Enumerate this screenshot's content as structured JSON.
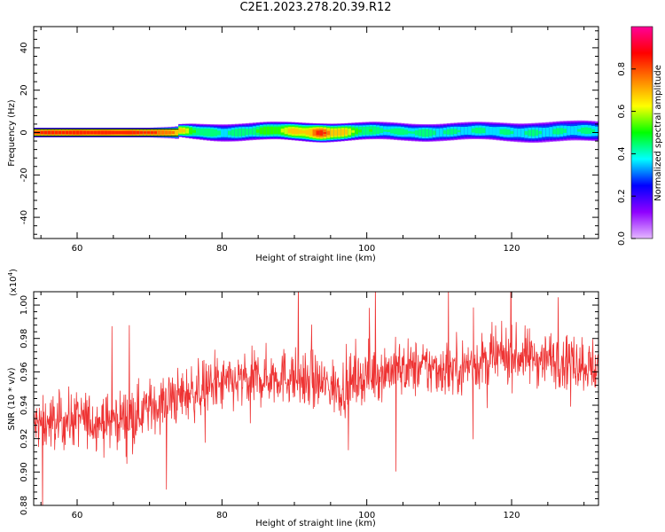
{
  "title": "C2E1.2023.278.20.39.R12",
  "chart_data": [
    {
      "type": "heatmap",
      "xlabel": "Height of straight line (km)",
      "ylabel": "Frequency (Hz)",
      "xlim": [
        54,
        132
      ],
      "ylim": [
        -50,
        50
      ],
      "xticks": [
        60,
        80,
        100,
        120
      ],
      "yticks": [
        -40,
        -20,
        0,
        20,
        40
      ],
      "colorbar": {
        "label": "Normalized spectral amplitude",
        "range": [
          0,
          1
        ],
        "ticks": [
          0.0,
          0.2,
          0.4,
          0.6,
          0.8
        ],
        "colormap": [
          "#e4b8ff",
          "#8f00ff",
          "#0000ff",
          "#00ffff",
          "#00ff00",
          "#ffff00",
          "#ff8000",
          "#ff0000",
          "#ff0099"
        ]
      },
      "band_profile": {
        "height_km": [
          54,
          60,
          66,
          70,
          73,
          76,
          80,
          84,
          88,
          92,
          94,
          97,
          100,
          104,
          108,
          112,
          116,
          120,
          124,
          128,
          132
        ],
        "peak_amplitude": [
          0.85,
          0.88,
          0.87,
          0.85,
          0.8,
          0.55,
          0.45,
          0.5,
          0.62,
          0.75,
          0.85,
          0.68,
          0.5,
          0.45,
          0.48,
          0.44,
          0.45,
          0.44,
          0.45,
          0.44,
          0.45
        ],
        "half_width_hz": [
          1.5,
          1.5,
          1.5,
          1.5,
          1.8,
          2.6,
          3.0,
          3.0,
          3.0,
          3.2,
          3.2,
          3.0,
          3.0,
          3.0,
          3.0,
          3.0,
          3.0,
          3.2,
          3.5,
          3.5,
          3.5
        ]
      }
    },
    {
      "type": "line",
      "xlabel": "Height of straight line (km)",
      "ylabel": "SNR (10 * v/v)",
      "y_multiplier": "(x10",
      "y_multiplier_exp": "4",
      "y_multiplier_close": ")",
      "xlim": [
        54,
        132
      ],
      "ylim": [
        0.88,
        1.008
      ],
      "xticks": [
        60,
        80,
        100,
        120
      ],
      "yticks": [
        0.88,
        0.9,
        0.92,
        0.94,
        0.96,
        0.98,
        1.0
      ],
      "series": [
        {
          "color": "#ee3333",
          "trend_x": [
            54,
            60,
            64,
            68,
            72,
            76,
            80,
            84,
            88,
            92,
            96,
            100,
            104,
            108,
            112,
            116,
            120,
            124,
            128,
            132
          ],
          "trend_y": [
            0.928,
            0.932,
            0.93,
            0.935,
            0.942,
            0.948,
            0.952,
            0.955,
            0.958,
            0.955,
            0.95,
            0.958,
            0.962,
            0.962,
            0.962,
            0.966,
            0.97,
            0.968,
            0.968,
            0.962
          ]
        }
      ]
    }
  ]
}
